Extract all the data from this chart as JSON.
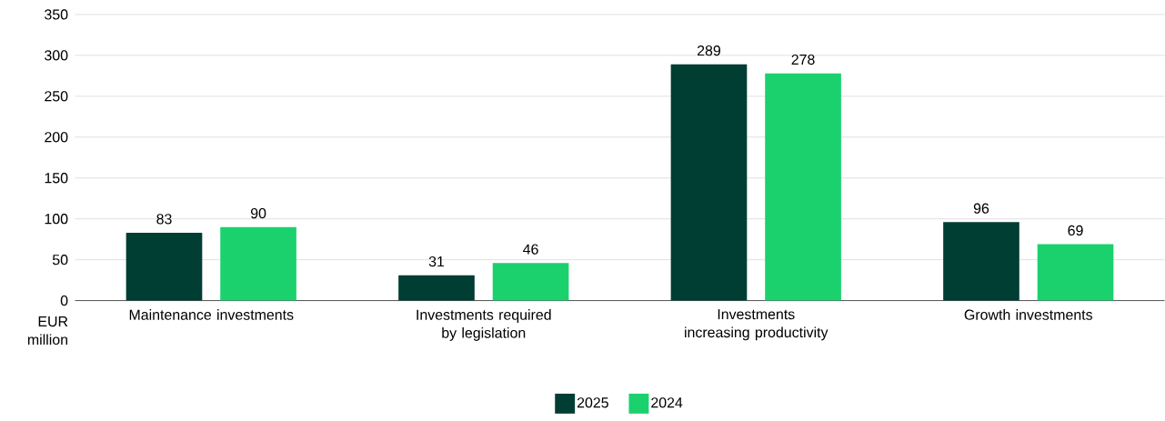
{
  "chart_data": {
    "type": "bar",
    "ylabel": "EUR million",
    "categories": [
      "Maintenance investments",
      "Investments required by legislation",
      "Investments increasing productivity",
      "Growth investments"
    ],
    "series": [
      {
        "name": "2025",
        "color": "#003d33",
        "values": [
          83,
          31,
          289,
          96
        ]
      },
      {
        "name": "2024",
        "color": "#1bd16e",
        "values": [
          90,
          46,
          278,
          69
        ]
      }
    ],
    "ylim": [
      0,
      350
    ],
    "yticks": [
      0,
      50,
      100,
      150,
      200,
      250,
      300,
      350
    ],
    "grid": "y",
    "legend": "bottom",
    "data_labels": true
  }
}
